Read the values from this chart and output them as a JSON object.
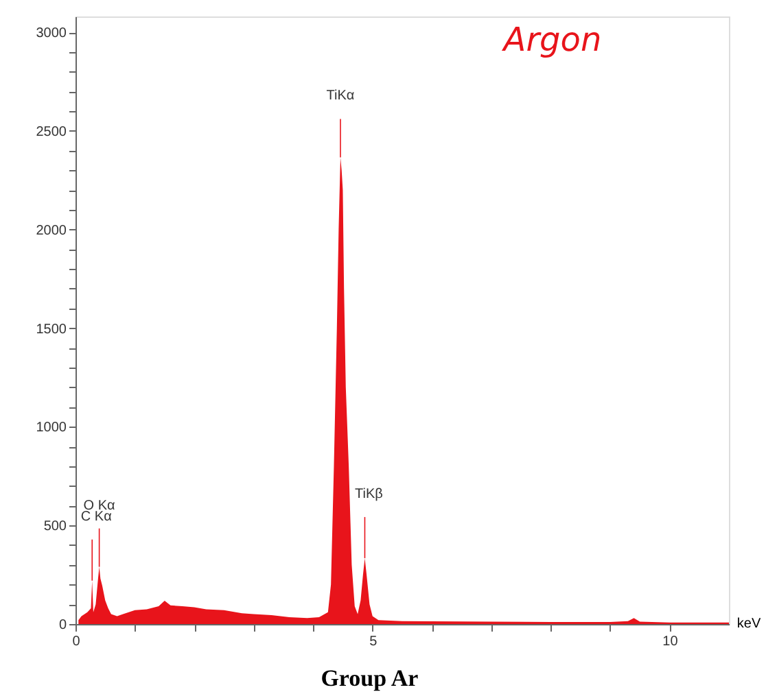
{
  "chart_data": {
    "type": "area",
    "xlabel": "keV",
    "x": [
      0.05,
      0.1,
      0.2,
      0.26,
      0.28,
      0.3,
      0.34,
      0.38,
      0.4,
      0.42,
      0.45,
      0.5,
      0.55,
      0.6,
      0.7,
      0.8,
      1.0,
      1.2,
      1.4,
      1.5,
      1.6,
      1.8,
      2.0,
      2.2,
      2.5,
      2.8,
      3.0,
      3.3,
      3.6,
      3.9,
      4.1,
      4.25,
      4.3,
      4.35,
      4.4,
      4.43,
      4.46,
      4.48,
      4.5,
      4.52,
      4.55,
      4.6,
      4.65,
      4.7,
      4.75,
      4.8,
      4.84,
      4.87,
      4.9,
      4.95,
      5.0,
      5.1,
      5.5,
      6.0,
      7.0,
      8.0,
      9.0,
      9.3,
      9.4,
      9.5,
      10.0,
      11.0
    ],
    "values": [
      20,
      40,
      60,
      80,
      220,
      60,
      100,
      230,
      290,
      230,
      195,
      120,
      80,
      50,
      40,
      50,
      70,
      75,
      90,
      118,
      95,
      90,
      85,
      75,
      70,
      55,
      50,
      45,
      35,
      30,
      35,
      60,
      200,
      800,
      1500,
      2000,
      2366,
      2300,
      2200,
      1700,
      1200,
      800,
      300,
      90,
      50,
      120,
      250,
      334,
      250,
      100,
      40,
      20,
      15,
      14,
      12,
      10,
      10,
      15,
      30,
      12,
      8,
      8
    ],
    "color": "#e8141b",
    "xlim": [
      0,
      11
    ],
    "ylim": [
      0,
      3080
    ],
    "xticks": [
      0,
      {
        "value": 1,
        "label": null
      },
      {
        "value": 2,
        "label": null
      },
      {
        "value": 3,
        "label": null
      },
      {
        "value": 4,
        "label": null
      },
      5,
      {
        "value": 6,
        "label": null
      },
      {
        "value": 7,
        "label": null
      },
      {
        "value": 8,
        "label": null
      },
      {
        "value": 9,
        "label": null
      },
      10
    ],
    "yticks": [
      0,
      {
        "value": 100,
        "label": null
      },
      {
        "value": 200,
        "label": null
      },
      {
        "value": 300,
        "label": null
      },
      {
        "value": 400,
        "label": null
      },
      500,
      {
        "value": 600,
        "label": null
      },
      {
        "value": 700,
        "label": null
      },
      {
        "value": 800,
        "label": null
      },
      {
        "value": 900,
        "label": null
      },
      1000,
      {
        "value": 1100,
        "label": null
      },
      {
        "value": 1200,
        "label": null
      },
      {
        "value": 1300,
        "label": null
      },
      {
        "value": 1400,
        "label": null
      },
      1500,
      {
        "value": 1600,
        "label": null
      },
      {
        "value": 1700,
        "label": null
      },
      {
        "value": 1800,
        "label": null
      },
      {
        "value": 1900,
        "label": null
      },
      2000,
      {
        "value": 2100,
        "label": null
      },
      {
        "value": 2200,
        "label": null
      },
      {
        "value": 2300,
        "label": null
      },
      {
        "value": 2400,
        "label": null
      },
      2500,
      {
        "value": 2600,
        "label": null
      },
      {
        "value": 2700,
        "label": null
      },
      {
        "value": 2800,
        "label": null
      },
      {
        "value": 2900,
        "label": null
      },
      3000
    ],
    "grid": false,
    "annotations": [
      {
        "text": "TiKα",
        "x": 4.46,
        "y": 2366
      },
      {
        "text": "TiKβ",
        "x": 4.87,
        "y": 334
      },
      {
        "text": "O Kα",
        "x": 0.4,
        "y": 290
      },
      {
        "text": "C Kα",
        "x": 0.28,
        "y": 220
      },
      "Argon",
      "Group Ar"
    ]
  }
}
